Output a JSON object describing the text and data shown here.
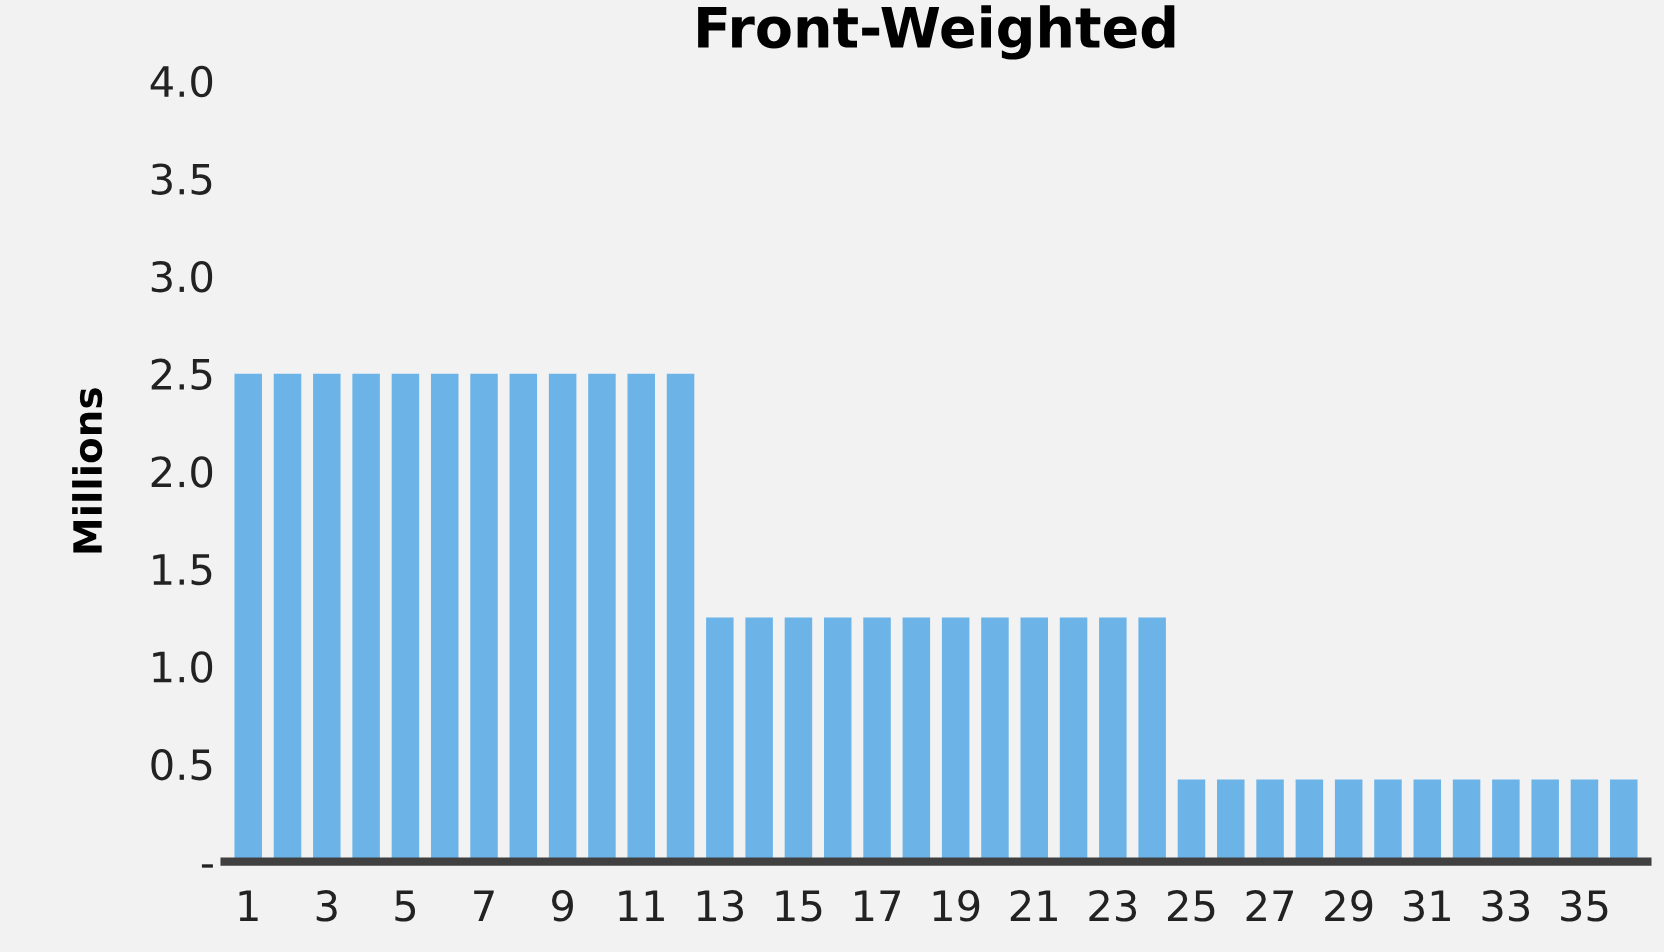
{
  "chart_data": {
    "type": "bar",
    "title": "Front-Weighted",
    "ylabel": "Millions",
    "categories": [
      "1",
      null,
      "3",
      null,
      "5",
      null,
      "7",
      null,
      "9",
      null,
      "11",
      null,
      "13",
      null,
      "15",
      null,
      "17",
      null,
      "19",
      null,
      "21",
      null,
      "23",
      null,
      "25",
      null,
      "27",
      null,
      "29",
      null,
      "31",
      null,
      "33",
      null,
      "35",
      null
    ],
    "values": [
      2.5,
      2.5,
      2.5,
      2.5,
      2.5,
      2.5,
      2.5,
      2.5,
      2.5,
      2.5,
      2.5,
      2.5,
      1.25,
      1.25,
      1.25,
      1.25,
      1.25,
      1.25,
      1.25,
      1.25,
      1.25,
      1.25,
      1.25,
      1.25,
      0.42,
      0.42,
      0.42,
      0.42,
      0.42,
      0.42,
      0.42,
      0.42,
      0.42,
      0.42,
      0.42,
      0.42
    ],
    "color": "#6cb4e8",
    "ylim": [
      0,
      4.0
    ],
    "yticks": [
      {
        "value": 0,
        "label": "-"
      },
      {
        "value": 0.5,
        "label": "0.5"
      },
      {
        "value": 1.0,
        "label": "1.0"
      },
      {
        "value": 1.5,
        "label": "1.5"
      },
      {
        "value": 2.0,
        "label": "2.0"
      },
      {
        "value": 2.5,
        "label": "2.5"
      },
      {
        "value": 3.0,
        "label": "3.0"
      },
      {
        "value": 3.5,
        "label": "3.5"
      },
      {
        "value": 4.0,
        "label": "4.0"
      }
    ],
    "grid": false
  }
}
